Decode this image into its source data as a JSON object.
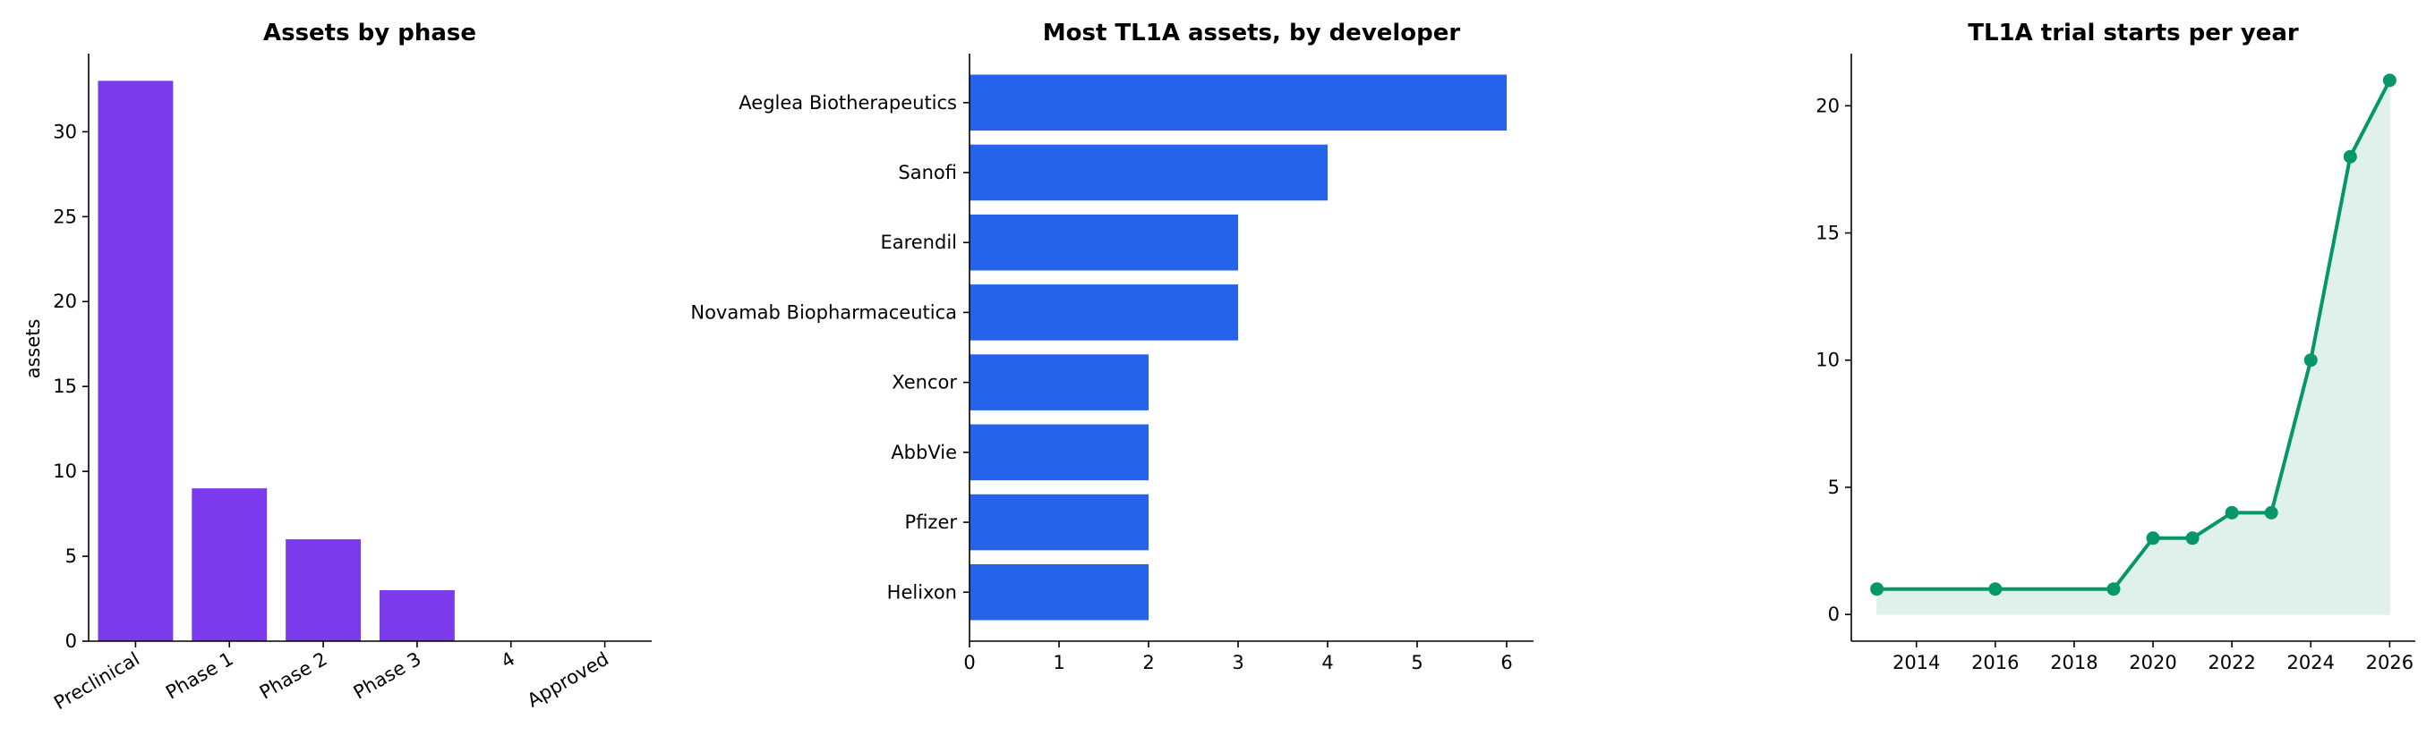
{
  "chart_data": [
    {
      "type": "bar",
      "title": "Assets by phase",
      "xlabel": "",
      "ylabel": "assets",
      "categories": [
        "Preclinical",
        "Phase 1",
        "Phase 2",
        "Phase 3",
        "4",
        "Approved"
      ],
      "values": [
        33,
        9,
        6,
        3,
        0,
        0
      ],
      "ylim": [
        0,
        34.6
      ],
      "yticks": [
        0,
        5,
        10,
        15,
        20,
        25,
        30
      ],
      "color": "#7c3aed",
      "grid": false,
      "legend": "none"
    },
    {
      "type": "bar",
      "orientation": "horizontal",
      "title": "Most TL1A assets, by developer",
      "xlabel": "",
      "ylabel": "",
      "categories": [
        "Aeglea Biotherapeutics",
        "Sanofi",
        "Earendil",
        "Novamab Biopharmaceutica",
        "Xencor",
        "AbbVie",
        "Pfizer",
        "Helixon"
      ],
      "values": [
        6,
        4,
        3,
        3,
        2,
        2,
        2,
        2
      ],
      "xlim": [
        0,
        6.3
      ],
      "xticks": [
        0,
        1,
        2,
        3,
        4,
        5,
        6
      ],
      "color": "#2563eb",
      "grid": false,
      "legend": "none"
    },
    {
      "type": "area",
      "title": "TL1A trial starts per year",
      "xlabel": "",
      "ylabel": "",
      "x": [
        2013,
        2016,
        2019,
        2020,
        2021,
        2022,
        2023,
        2024,
        2025,
        2026
      ],
      "values": [
        1,
        1,
        1,
        3,
        3,
        4,
        4,
        10,
        18,
        21
      ],
      "xlim": [
        2012.35,
        2026.65
      ],
      "ylim": [
        -1.05,
        22.05
      ],
      "xticks": [
        2014,
        2016,
        2018,
        2020,
        2022,
        2024,
        2026
      ],
      "yticks": [
        0,
        5,
        10,
        15,
        20
      ],
      "color": "#059669",
      "fill_color": "#dff1ea",
      "grid": false,
      "legend": "none"
    }
  ]
}
